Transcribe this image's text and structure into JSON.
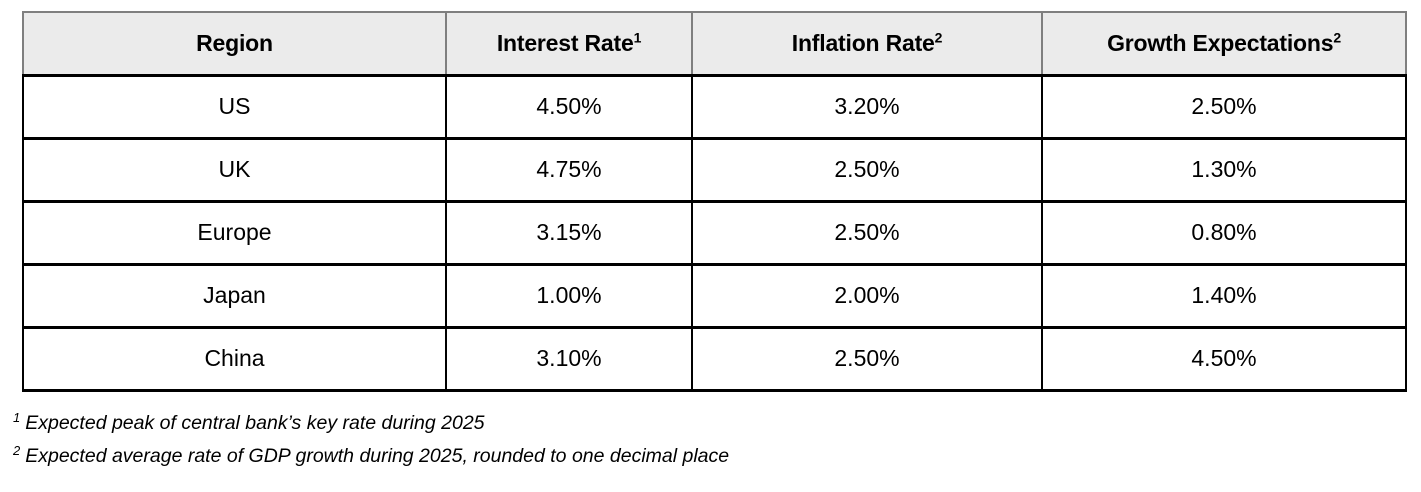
{
  "colors": {
    "page_bg": "#ffffff",
    "header_bg": "#ebebeb",
    "header_border": "#7f7f7f",
    "body_border": "#000000",
    "text": "#000000"
  },
  "chart_data": {
    "type": "table",
    "columns": [
      {
        "label": "Region",
        "footnote_ref": ""
      },
      {
        "label": "Interest Rate",
        "footnote_ref": "1"
      },
      {
        "label": "Inflation Rate",
        "footnote_ref": "2"
      },
      {
        "label": "Growth Expectations",
        "footnote_ref": "2"
      }
    ],
    "rows": [
      {
        "region": "US",
        "interest_rate": "4.50%",
        "inflation_rate": "3.20%",
        "growth_expectations": "2.50%"
      },
      {
        "region": "UK",
        "interest_rate": "4.75%",
        "inflation_rate": "2.50%",
        "growth_expectations": "1.30%"
      },
      {
        "region": "Europe",
        "interest_rate": "3.15%",
        "inflation_rate": "2.50%",
        "growth_expectations": "0.80%"
      },
      {
        "region": "Japan",
        "interest_rate": "1.00%",
        "inflation_rate": "2.00%",
        "growth_expectations": "1.40%"
      },
      {
        "region": "China",
        "interest_rate": "3.10%",
        "inflation_rate": "2.50%",
        "growth_expectations": "4.50%"
      }
    ],
    "footnotes": [
      {
        "marker": "1",
        "text": "Expected peak of central bank’s key rate during 2025"
      },
      {
        "marker": "2",
        "text": "Expected average rate of GDP growth during 2025, rounded to one decimal place"
      }
    ]
  }
}
